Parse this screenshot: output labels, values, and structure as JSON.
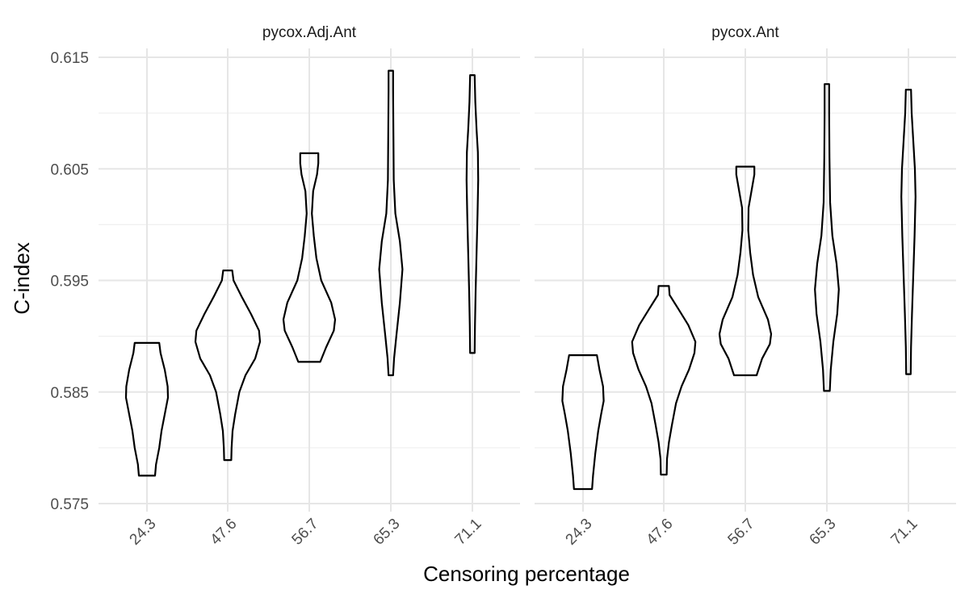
{
  "chart_data": {
    "type": "violin",
    "xlabel": "Censoring percentage",
    "ylabel": "C-index",
    "ylim": [
      0.575,
      0.615
    ],
    "yticks": [
      "0.575",
      "0.585",
      "0.595",
      "0.605",
      "0.615"
    ],
    "categories": [
      "24.3",
      "47.6",
      "56.7",
      "65.3",
      "71.1"
    ],
    "grid": true,
    "panels": [
      {
        "title": "pycox.Adj.Ant",
        "violins": [
          {
            "category": "24.3",
            "min": 0.5775,
            "max": 0.5894,
            "profile": [
              [
                0.5775,
                0.25
              ],
              [
                0.5785,
                0.28
              ],
              [
                0.58,
                0.38
              ],
              [
                0.5815,
                0.45
              ],
              [
                0.583,
                0.55
              ],
              [
                0.5845,
                0.65
              ],
              [
                0.5855,
                0.64
              ],
              [
                0.587,
                0.55
              ],
              [
                0.5885,
                0.42
              ],
              [
                0.5894,
                0.38
              ]
            ]
          },
          {
            "category": "47.6",
            "min": 0.5789,
            "max": 0.5959,
            "profile": [
              [
                0.5789,
                0.11
              ],
              [
                0.58,
                0.12
              ],
              [
                0.5815,
                0.15
              ],
              [
                0.583,
                0.23
              ],
              [
                0.585,
                0.36
              ],
              [
                0.5865,
                0.55
              ],
              [
                0.588,
                0.85
              ],
              [
                0.5895,
                1.0
              ],
              [
                0.5905,
                0.97
              ],
              [
                0.592,
                0.72
              ],
              [
                0.5935,
                0.44
              ],
              [
                0.595,
                0.18
              ],
              [
                0.5959,
                0.14
              ]
            ]
          },
          {
            "category": "56.7",
            "min": 0.5877,
            "max": 0.6064,
            "profile": [
              [
                0.5877,
                0.34
              ],
              [
                0.589,
                0.52
              ],
              [
                0.5905,
                0.76
              ],
              [
                0.5915,
                0.8
              ],
              [
                0.593,
                0.68
              ],
              [
                0.595,
                0.37
              ],
              [
                0.597,
                0.22
              ],
              [
                0.599,
                0.14
              ],
              [
                0.601,
                0.08
              ],
              [
                0.603,
                0.12
              ],
              [
                0.6045,
                0.24
              ],
              [
                0.6055,
                0.28
              ],
              [
                0.6064,
                0.28
              ]
            ]
          },
          {
            "category": "65.3",
            "min": 0.5865,
            "max": 0.6138,
            "profile": [
              [
                0.5865,
                0.07
              ],
              [
                0.588,
                0.1
              ],
              [
                0.59,
                0.17
              ],
              [
                0.593,
                0.28
              ],
              [
                0.596,
                0.36
              ],
              [
                0.5985,
                0.28
              ],
              [
                0.601,
                0.14
              ],
              [
                0.604,
                0.09
              ],
              [
                0.608,
                0.08
              ],
              [
                0.612,
                0.07
              ],
              [
                0.6138,
                0.07
              ]
            ]
          },
          {
            "category": "71.1",
            "min": 0.5885,
            "max": 0.6134,
            "profile": [
              [
                0.5885,
                0.07
              ],
              [
                0.591,
                0.08
              ],
              [
                0.594,
                0.1
              ],
              [
                0.5975,
                0.13
              ],
              [
                0.601,
                0.16
              ],
              [
                0.604,
                0.18
              ],
              [
                0.6065,
                0.17
              ],
              [
                0.6085,
                0.13
              ],
              [
                0.611,
                0.09
              ],
              [
                0.6134,
                0.07
              ]
            ]
          }
        ]
      },
      {
        "title": "pycox.Ant",
        "violins": [
          {
            "category": "24.3",
            "min": 0.5763,
            "max": 0.5883,
            "profile": [
              [
                0.5763,
                0.28
              ],
              [
                0.5775,
                0.31
              ],
              [
                0.5795,
                0.38
              ],
              [
                0.5815,
                0.47
              ],
              [
                0.583,
                0.56
              ],
              [
                0.5842,
                0.64
              ],
              [
                0.5855,
                0.62
              ],
              [
                0.587,
                0.51
              ],
              [
                0.5883,
                0.43
              ]
            ]
          },
          {
            "category": "47.6",
            "min": 0.5776,
            "max": 0.5945,
            "profile": [
              [
                0.5776,
                0.09
              ],
              [
                0.579,
                0.1
              ],
              [
                0.5805,
                0.16
              ],
              [
                0.582,
                0.25
              ],
              [
                0.584,
                0.38
              ],
              [
                0.5855,
                0.55
              ],
              [
                0.587,
                0.78
              ],
              [
                0.5885,
                0.95
              ],
              [
                0.5895,
                0.98
              ],
              [
                0.591,
                0.76
              ],
              [
                0.5925,
                0.44
              ],
              [
                0.5937,
                0.18
              ],
              [
                0.5945,
                0.16
              ]
            ]
          },
          {
            "category": "56.7",
            "min": 0.5865,
            "max": 0.6052,
            "profile": [
              [
                0.5865,
                0.35
              ],
              [
                0.588,
                0.52
              ],
              [
                0.5893,
                0.76
              ],
              [
                0.5902,
                0.8
              ],
              [
                0.5915,
                0.7
              ],
              [
                0.5935,
                0.4
              ],
              [
                0.5955,
                0.24
              ],
              [
                0.5975,
                0.15
              ],
              [
                0.5995,
                0.09
              ],
              [
                0.6015,
                0.1
              ],
              [
                0.6035,
                0.22
              ],
              [
                0.6045,
                0.28
              ],
              [
                0.6052,
                0.28
              ]
            ]
          },
          {
            "category": "65.3",
            "min": 0.5851,
            "max": 0.6126,
            "profile": [
              [
                0.5851,
                0.09
              ],
              [
                0.587,
                0.12
              ],
              [
                0.5895,
                0.2
              ],
              [
                0.592,
                0.32
              ],
              [
                0.5942,
                0.37
              ],
              [
                0.5965,
                0.3
              ],
              [
                0.599,
                0.17
              ],
              [
                0.602,
                0.1
              ],
              [
                0.606,
                0.08
              ],
              [
                0.61,
                0.07
              ],
              [
                0.6126,
                0.07
              ]
            ]
          },
          {
            "category": "71.1",
            "min": 0.5866,
            "max": 0.6121,
            "profile": [
              [
                0.5866,
                0.07
              ],
              [
                0.589,
                0.08
              ],
              [
                0.592,
                0.11
              ],
              [
                0.5955,
                0.15
              ],
              [
                0.599,
                0.19
              ],
              [
                0.6025,
                0.22
              ],
              [
                0.605,
                0.2
              ],
              [
                0.6075,
                0.15
              ],
              [
                0.61,
                0.1
              ],
              [
                0.6121,
                0.08
              ]
            ]
          }
        ]
      }
    ]
  }
}
